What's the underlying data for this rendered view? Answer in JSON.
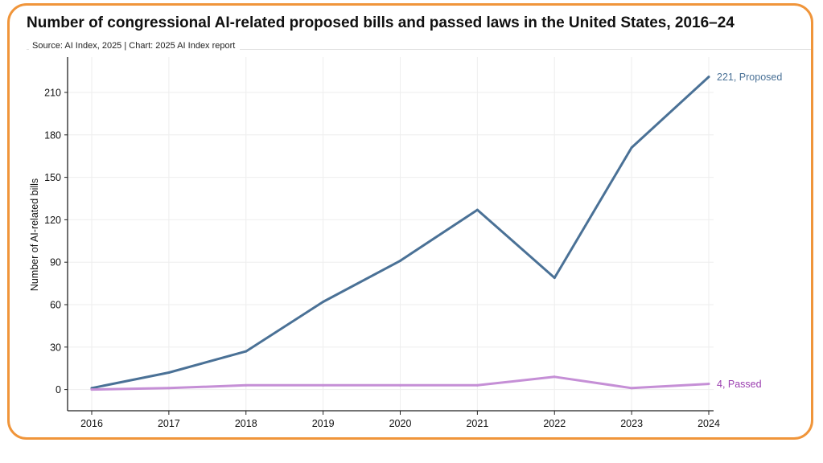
{
  "title": "Number of congressional AI-related proposed bills and passed laws in the United States, 2016–24",
  "source": "Source: AI Index, 2025 | Chart: 2025 AI Index report",
  "colors": {
    "frame": "#f0953a",
    "proposed": "#4a7196",
    "passed": "#c58fd6",
    "passed_label": "#9b3fb0"
  },
  "chart_data": {
    "type": "line",
    "title": "Number of congressional AI-related proposed bills and passed laws in the United States, 2016–24",
    "ylabel": "Number of AI-related bills",
    "xlabel": "",
    "x": [
      2016,
      2017,
      2018,
      2019,
      2020,
      2021,
      2022,
      2023,
      2024
    ],
    "ylim": [
      -15,
      235
    ],
    "yticks": [
      0,
      30,
      60,
      90,
      120,
      150,
      180,
      210
    ],
    "grid": true,
    "series": [
      {
        "name": "Proposed",
        "values": [
          1,
          12,
          27,
          62,
          91,
          127,
          79,
          171,
          221
        ],
        "end_label": "221, Proposed"
      },
      {
        "name": "Passed",
        "values": [
          0,
          1,
          3,
          3,
          3,
          3,
          9,
          1,
          4
        ],
        "end_label": "4, Passed"
      }
    ]
  }
}
